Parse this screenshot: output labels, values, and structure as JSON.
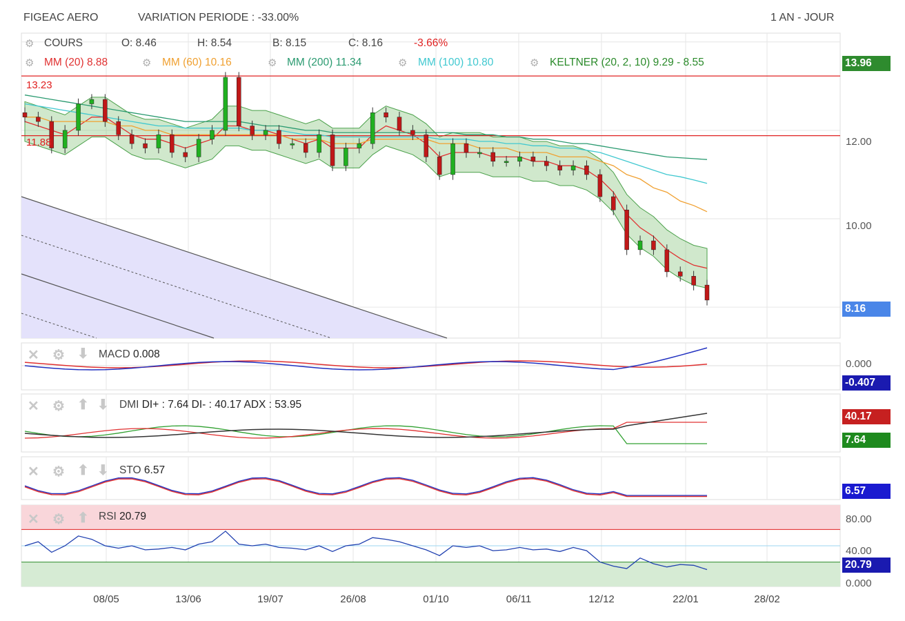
{
  "header": {
    "symbol": "FIGEAC AERO",
    "variation_label": "VARIATION PERIODE : -33.00%",
    "period": "1 AN - JOUR"
  },
  "legend": {
    "cours": "COURS",
    "o": "O: 8.46",
    "h": "H: 8.54",
    "b": "B: 8.15",
    "c": "C: 8.16",
    "change": "-3.66%",
    "mm20": "MM (20)  8.88",
    "mm60": "MM (60)  10.16",
    "mm200": "MM (200)  11.34",
    "mm100": "MM (100)  10.80",
    "keltner": "KELTNER (20, 2, 10)  9.29 - 8.55",
    "colors": {
      "mm20": "#e03030",
      "mm60": "#f0a030",
      "mm200": "#2a9a70",
      "mm100": "#40c8d0",
      "keltner": "#2a8a2a",
      "change": "#e02020"
    }
  },
  "levels": {
    "high_label": "13.23",
    "low_label": "11.88",
    "high": 13.23,
    "low": 11.88
  },
  "price_axis": {
    "ticks": [
      "12.00",
      "10.00"
    ],
    "top_tag": "13.96",
    "last_tag": "8.16"
  },
  "panes": {
    "macd": {
      "name": "MACD",
      "value": "0.008",
      "axis": "0.000",
      "tag": "-0.407"
    },
    "dmi": {
      "name": "DMI",
      "value": "DI+ : 7.64 DI- : 40.17 ADX : 53.95",
      "tag_di_minus": "40.17",
      "tag_di_plus": "7.64"
    },
    "sto": {
      "name": "STO",
      "value": "6.57",
      "tag": "6.57"
    },
    "rsi": {
      "name": "RSI",
      "value": "20.79",
      "axis": [
        "80.00",
        "40.00",
        "0.000"
      ],
      "tag": "20.79"
    }
  },
  "x_axis": {
    "labels": [
      "08/05",
      "13/06",
      "19/07",
      "26/08",
      "01/10",
      "06/11",
      "12/12",
      "22/01",
      "28/02"
    ]
  },
  "chart_data": [
    {
      "type": "line",
      "title": "FIGEAC AERO",
      "series": [
        {
          "name": "COURS",
          "values": [
            12.3,
            12.2,
            11.6,
            12.0,
            12.6,
            12.7,
            12.2,
            11.9,
            11.7,
            11.6,
            11.9,
            11.5,
            11.4,
            11.8,
            12.0,
            13.2,
            12.1,
            11.9,
            12.0,
            11.7,
            11.7,
            11.5,
            11.9,
            11.2,
            11.6,
            11.7,
            12.4,
            12.3,
            12.0,
            11.9,
            11.4,
            11.0,
            11.7,
            11.5,
            11.5,
            11.3,
            11.3,
            11.4,
            11.3,
            11.2,
            11.1,
            11.2,
            11.0,
            10.5,
            10.2,
            9.3,
            9.5,
            9.3,
            8.8,
            8.7,
            8.5,
            8.16
          ]
        },
        {
          "name": "MM (20)",
          "values": [
            12.2,
            12.1,
            12.0,
            11.9,
            12.1,
            12.3,
            12.3,
            12.1,
            11.9,
            11.8,
            11.8,
            11.7,
            11.6,
            11.7,
            11.8,
            12.1,
            12.1,
            12.0,
            12.0,
            11.9,
            11.8,
            11.7,
            11.8,
            11.6,
            11.6,
            11.6,
            11.9,
            12.1,
            12.0,
            11.9,
            11.7,
            11.4,
            11.5,
            11.5,
            11.5,
            11.4,
            11.4,
            11.4,
            11.3,
            11.3,
            11.2,
            11.2,
            11.1,
            10.9,
            10.6,
            10.1,
            9.8,
            9.6,
            9.3,
            9.1,
            8.95,
            8.88
          ]
        },
        {
          "name": "MM (60)",
          "values": [
            12.3,
            12.3,
            12.2,
            12.2,
            12.2,
            12.2,
            12.2,
            12.1,
            12.1,
            12.0,
            12.0,
            11.9,
            11.9,
            11.9,
            11.9,
            11.9,
            11.9,
            11.9,
            11.9,
            11.9,
            11.8,
            11.8,
            11.8,
            11.7,
            11.7,
            11.7,
            11.8,
            11.8,
            11.8,
            11.8,
            11.8,
            11.7,
            11.7,
            11.7,
            11.6,
            11.6,
            11.6,
            11.5,
            11.5,
            11.5,
            11.4,
            11.4,
            11.4,
            11.3,
            11.2,
            11.0,
            10.9,
            10.7,
            10.6,
            10.4,
            10.3,
            10.16
          ]
        },
        {
          "name": "MM (200)",
          "values": [
            12.8,
            12.75,
            12.7,
            12.65,
            12.6,
            12.55,
            12.5,
            12.45,
            12.4,
            12.35,
            12.3,
            12.25,
            12.2,
            12.2,
            12.2,
            12.2,
            12.2,
            12.15,
            12.1,
            12.1,
            12.05,
            12.0,
            12.0,
            11.95,
            11.95,
            11.95,
            11.95,
            11.95,
            11.95,
            11.95,
            11.95,
            11.95,
            11.95,
            11.9,
            11.9,
            11.9,
            11.85,
            11.85,
            11.8,
            11.8,
            11.75,
            11.7,
            11.7,
            11.65,
            11.6,
            11.55,
            11.5,
            11.45,
            11.4,
            11.38,
            11.36,
            11.34
          ]
        },
        {
          "name": "MM (100)",
          "values": [
            12.6,
            12.55,
            12.5,
            12.45,
            12.4,
            12.35,
            12.3,
            12.25,
            12.2,
            12.15,
            12.1,
            12.1,
            12.05,
            12.05,
            12.05,
            12.05,
            12.05,
            12.0,
            12.0,
            12.0,
            11.95,
            11.9,
            11.9,
            11.85,
            11.85,
            11.85,
            11.85,
            11.85,
            11.85,
            11.85,
            11.85,
            11.8,
            11.8,
            11.8,
            11.75,
            11.75,
            11.7,
            11.7,
            11.65,
            11.65,
            11.6,
            11.6,
            11.55,
            11.5,
            11.4,
            11.3,
            11.2,
            11.1,
            11.0,
            10.95,
            10.88,
            10.8
          ]
        }
      ],
      "ylim": [
        7.3,
        14.2
      ],
      "grid": true
    },
    {
      "type": "line",
      "title": "RSI",
      "series": [
        {
          "name": "RSI",
          "values": [
            50,
            55,
            42,
            50,
            62,
            58,
            50,
            47,
            50,
            45,
            46,
            48,
            45,
            52,
            55,
            68,
            52,
            50,
            52,
            48,
            47,
            45,
            50,
            43,
            50,
            52,
            60,
            58,
            55,
            50,
            45,
            38,
            50,
            48,
            50,
            44,
            45,
            48,
            45,
            46,
            43,
            48,
            44,
            30,
            25,
            22,
            35,
            28,
            24,
            27,
            26,
            20.79
          ]
        }
      ],
      "ylim": [
        0,
        100
      ]
    }
  ]
}
